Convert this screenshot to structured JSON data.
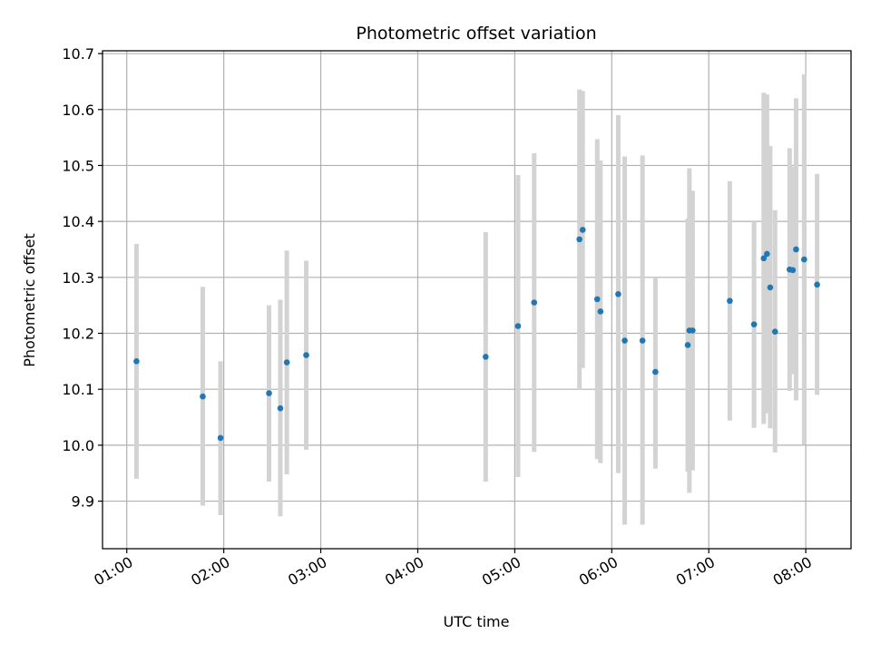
{
  "chart_data": {
    "type": "scatter",
    "title": "Photometric offset variation",
    "xlabel": "UTC time",
    "ylabel": "Photometric offset",
    "x_unit": "time of day (HH:MM)",
    "xlim": [
      "00:45",
      "08:28"
    ],
    "ylim": [
      9.815,
      10.705
    ],
    "xticks": [
      "01:00",
      "02:00",
      "03:00",
      "04:00",
      "05:00",
      "06:00",
      "07:00",
      "08:00"
    ],
    "yticks": [
      "9.9",
      "10.0",
      "10.1",
      "10.2",
      "10.3",
      "10.4",
      "10.5",
      "10.6",
      "10.7"
    ],
    "grid": true,
    "marker_color": "#1f77b4",
    "errorbar_color": "#d3d3d3",
    "points": [
      {
        "x": "01:06",
        "y": 10.15,
        "lo": 9.94,
        "hi": 10.36
      },
      {
        "x": "01:47",
        "y": 10.087,
        "lo": 9.892,
        "hi": 10.283
      },
      {
        "x": "01:58",
        "y": 10.013,
        "lo": 9.875,
        "hi": 10.15
      },
      {
        "x": "02:28",
        "y": 10.093,
        "lo": 9.935,
        "hi": 10.25
      },
      {
        "x": "02:35",
        "y": 10.066,
        "lo": 9.873,
        "hi": 10.26
      },
      {
        "x": "02:39",
        "y": 10.148,
        "lo": 9.948,
        "hi": 10.348
      },
      {
        "x": "02:51",
        "y": 10.161,
        "lo": 9.992,
        "hi": 10.33
      },
      {
        "x": "04:42",
        "y": 10.158,
        "lo": 9.935,
        "hi": 10.381
      },
      {
        "x": "05:02",
        "y": 10.213,
        "lo": 9.943,
        "hi": 10.483
      },
      {
        "x": "05:12",
        "y": 10.255,
        "lo": 9.988,
        "hi": 10.522
      },
      {
        "x": "05:40",
        "y": 10.368,
        "lo": 10.1,
        "hi": 10.636
      },
      {
        "x": "05:42",
        "y": 10.385,
        "lo": 10.138,
        "hi": 10.633
      },
      {
        "x": "05:51",
        "y": 10.261,
        "lo": 9.975,
        "hi": 10.547
      },
      {
        "x": "05:53",
        "y": 10.239,
        "lo": 9.968,
        "hi": 10.509
      },
      {
        "x": "06:04",
        "y": 10.27,
        "lo": 9.95,
        "hi": 10.59
      },
      {
        "x": "06:08",
        "y": 10.187,
        "lo": 9.858,
        "hi": 10.516
      },
      {
        "x": "06:19",
        "y": 10.187,
        "lo": 9.858,
        "hi": 10.518
      },
      {
        "x": "06:27",
        "y": 10.131,
        "lo": 9.958,
        "hi": 10.3
      },
      {
        "x": "06:47",
        "y": 10.179,
        "lo": 9.953,
        "hi": 10.405
      },
      {
        "x": "06:48",
        "y": 10.205,
        "lo": 9.915,
        "hi": 10.495
      },
      {
        "x": "06:50",
        "y": 10.205,
        "lo": 9.955,
        "hi": 10.455
      },
      {
        "x": "07:13",
        "y": 10.258,
        "lo": 10.044,
        "hi": 10.472
      },
      {
        "x": "07:28",
        "y": 10.216,
        "lo": 10.031,
        "hi": 10.4
      },
      {
        "x": "07:34",
        "y": 10.334,
        "lo": 10.038,
        "hi": 10.63
      },
      {
        "x": "07:36",
        "y": 10.342,
        "lo": 10.057,
        "hi": 10.627
      },
      {
        "x": "07:38",
        "y": 10.282,
        "lo": 10.03,
        "hi": 10.535
      },
      {
        "x": "07:41",
        "y": 10.203,
        "lo": 9.987,
        "hi": 10.42
      },
      {
        "x": "07:50",
        "y": 10.314,
        "lo": 10.097,
        "hi": 10.531
      },
      {
        "x": "07:52",
        "y": 10.313,
        "lo": 10.127,
        "hi": 10.498
      },
      {
        "x": "07:54",
        "y": 10.35,
        "lo": 10.08,
        "hi": 10.62
      },
      {
        "x": "07:59",
        "y": 10.332,
        "lo": 10.001,
        "hi": 10.663
      },
      {
        "x": "08:07",
        "y": 10.287,
        "lo": 10.09,
        "hi": 10.485
      }
    ]
  }
}
